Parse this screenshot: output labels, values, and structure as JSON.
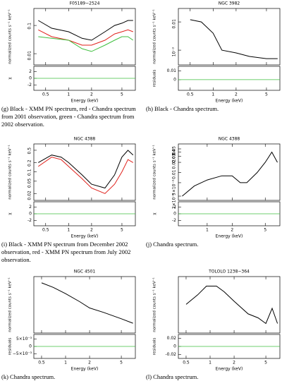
{
  "panels": [
    {
      "title": "F05189−2524",
      "ylabel": "normalized counts s⁻¹ keV⁻¹",
      "residual_label": "χ",
      "xlabel": "Energy (keV)",
      "caption": "(g) Black - XMM PN spectrum, red - Chandra spectrum from 2001 observation, green - Chandra spectrum from 2002 observation.",
      "xlim": [
        0.35,
        7.5
      ],
      "xticks": [
        0.5,
        1,
        2,
        5
      ],
      "ylim": [
        0.004,
        0.4
      ],
      "yticks": [
        0.01,
        0.1
      ],
      "residual_ylim": [
        -3.5,
        3.5
      ],
      "residual_yticks": [
        -2,
        0,
        2
      ],
      "series": [
        {
          "color": "#000000",
          "x": [
            0.4,
            0.6,
            1,
            1.5,
            2,
            3,
            4,
            5,
            6,
            7
          ],
          "values": [
            0.15,
            0.08,
            0.06,
            0.035,
            0.03,
            0.06,
            0.1,
            0.12,
            0.15,
            0.15
          ]
        },
        {
          "color": "#e0201b",
          "x": [
            0.4,
            0.6,
            1,
            1.5,
            2,
            3,
            4,
            5,
            6,
            7
          ],
          "values": [
            0.07,
            0.04,
            0.03,
            0.02,
            0.02,
            0.03,
            0.05,
            0.06,
            0.07,
            0.06
          ]
        },
        {
          "color": "#3fbf3f",
          "x": [
            0.4,
            0.6,
            1,
            1.5,
            2,
            3,
            4,
            5,
            6,
            7
          ],
          "values": [
            0.04,
            0.035,
            0.03,
            0.015,
            0.012,
            0.02,
            0.03,
            0.04,
            0.04,
            0.03
          ]
        }
      ]
    },
    {
      "title": "NGC 3982",
      "ylabel": "normalized counts s⁻¹ keV⁻¹",
      "residual_label": "residuals",
      "xlabel": "Energy (keV)",
      "caption": "(h) Black - Chandra spectrum.",
      "xlim": [
        0.35,
        7.5
      ],
      "xticks": [
        0.5,
        1,
        2,
        5
      ],
      "ylim": [
        0.0003,
        0.03
      ],
      "yticks": [
        {
          "value": 0.001,
          "label": "10⁻³"
        },
        0.01
      ],
      "residual_ylim": [
        -0.012,
        0.015
      ],
      "residual_yticks": [
        0,
        0.01
      ],
      "series": [
        {
          "color": "#000000",
          "x": [
            0.5,
            0.7,
            1,
            1.3,
            2,
            3,
            5,
            7
          ],
          "values": [
            0.012,
            0.01,
            0.004,
            0.001,
            0.0008,
            0.0006,
            0.0005,
            0.0005
          ]
        }
      ]
    },
    {
      "title": "NGC 4388",
      "ylabel": "normalized counts s⁻¹ keV⁻¹",
      "residual_label": "χ",
      "xlabel": "Energy (keV)",
      "caption": "(i) Black - XMM PN spectrum from December 2002 observation, red - XMM PN spectrum from July 2002 observation.",
      "xlim": [
        0.35,
        7.5
      ],
      "xticks": [
        0.5,
        1,
        2,
        5
      ],
      "ylim": [
        0.012,
        0.8
      ],
      "yticks": [
        0.02,
        0.05,
        0.1,
        0.2,
        0.5
      ],
      "residual_ylim": [
        -3.5,
        3.5
      ],
      "residual_yticks": [
        -2,
        0,
        2
      ],
      "series": [
        {
          "color": "#000000",
          "x": [
            0.4,
            0.6,
            0.8,
            1,
            1.5,
            2,
            3,
            4,
            5,
            6,
            7
          ],
          "values": [
            0.2,
            0.35,
            0.3,
            0.2,
            0.08,
            0.04,
            0.03,
            0.08,
            0.3,
            0.5,
            0.35
          ]
        },
        {
          "color": "#e0201b",
          "x": [
            0.4,
            0.6,
            0.8,
            1,
            1.5,
            2,
            3,
            4,
            5,
            6,
            7
          ],
          "values": [
            0.15,
            0.3,
            0.25,
            0.15,
            0.06,
            0.03,
            0.02,
            0.04,
            0.1,
            0.25,
            0.2
          ]
        }
      ]
    },
    {
      "title": "NGC 4388",
      "ylabel": "normalized counts s⁻¹ keV⁻¹",
      "residual_label": "χ",
      "xlabel": "Energy (keV)",
      "caption": "(j) Chandra spectrum.",
      "xlim": [
        0.45,
        7.5
      ],
      "xticks": [
        1,
        2,
        5
      ],
      "ylim": [
        0.0015,
        0.07
      ],
      "yticks": [
        {
          "value": 0.002,
          "label": "2×10⁻³"
        },
        {
          "value": 0.005,
          "label": "5×10⁻³"
        },
        0.01,
        0.02,
        0.03,
        0.04,
        0.05
      ],
      "residual_ylim": [
        -3.5,
        3.5
      ],
      "residual_yticks": [
        -2,
        0,
        2
      ],
      "series": [
        {
          "color": "#000000",
          "x": [
            0.5,
            0.7,
            1,
            1.5,
            2,
            2.5,
            3,
            4,
            5,
            6,
            7
          ],
          "values": [
            0.002,
            0.004,
            0.006,
            0.008,
            0.008,
            0.005,
            0.005,
            0.01,
            0.02,
            0.04,
            0.02
          ]
        }
      ]
    },
    {
      "title": "NGC 4501",
      "ylabel": "normalized counts s⁻¹ keV⁻¹",
      "residual_label": "residuals",
      "xlabel": "Energy (keV)",
      "caption": "(k) Chandra spectrum.",
      "xlim": [
        0.4,
        7.5
      ],
      "xticks": [
        0.5,
        1,
        2,
        5
      ],
      "ylim": [
        0.0008,
        0.03
      ],
      "residual_ylim": [
        -0.008,
        0.008
      ],
      "residual_yticks": [
        {
          "value": -0.005,
          "label": "−5×10⁻³"
        },
        0,
        {
          "value": 0.005,
          "label": "5×10⁻³"
        }
      ],
      "series": [
        {
          "color": "#000000",
          "x": [
            0.5,
            0.7,
            1,
            1.5,
            2,
            3,
            5,
            7
          ],
          "values": [
            0.02,
            0.015,
            0.01,
            0.006,
            0.004,
            0.003,
            0.002,
            0.0015
          ]
        }
      ]
    },
    {
      "title": "TOLOLO 1238−364",
      "ylabel": "normalized counts s⁻¹ keV⁻¹",
      "residual_label": "residuals",
      "xlabel": "Energy (keV)",
      "caption": "(l) Chandra spectrum.",
      "xlim": [
        0.4,
        7.5
      ],
      "xticks": [
        0.5,
        1,
        2,
        5
      ],
      "ylim": [
        0.0005,
        0.03
      ],
      "residual_ylim": [
        -0.03,
        0.03
      ],
      "residual_yticks": [
        -0.02,
        0,
        0.02
      ],
      "series": [
        {
          "color": "#000000",
          "x": [
            0.5,
            0.7,
            0.9,
            1.2,
            1.5,
            2,
            3,
            4,
            5,
            6,
            7
          ],
          "values": [
            0.004,
            0.008,
            0.015,
            0.015,
            0.01,
            0.005,
            0.002,
            0.0015,
            0.001,
            0.003,
            0.001
          ]
        }
      ]
    }
  ]
}
